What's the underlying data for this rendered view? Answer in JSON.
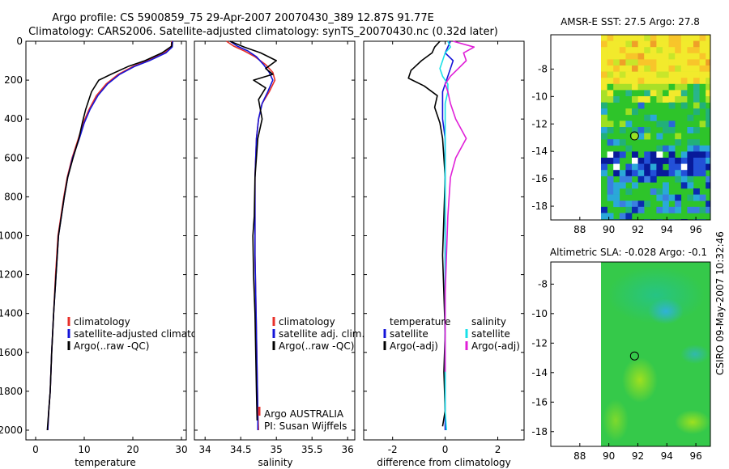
{
  "figure": {
    "title_line1": "Argo profile: CS 5900859_75 29-Apr-2007 20070430_389 12.87S 91.77E",
    "title_line2": "Climatology: CARS2006. Satellite-adjusted climatology: synTS_20070430.nc (0.32d later)",
    "credit": "CSIRO 09-May-2007 10:32:46"
  },
  "colors": {
    "climatology": "#e8302a",
    "satellite": "#1414d8",
    "argo": "#000000",
    "salinity_satellite": "#19e0e8",
    "salinity_argo": "#e020d8"
  },
  "chart_data": [
    {
      "id": "temperature-profile",
      "type": "line",
      "xlabel": "temperature",
      "ylabel": "",
      "xlim": [
        -2,
        31
      ],
      "ylim": [
        2050,
        0
      ],
      "xticks": [
        0,
        10,
        20,
        30
      ],
      "yticks": [
        0,
        200,
        400,
        600,
        800,
        1000,
        1200,
        1400,
        1600,
        1800,
        2000
      ],
      "legend": {
        "position": "middle-right",
        "entries": [
          "climatology",
          "satellite-adjusted climatology",
          "Argo(..raw -QC)"
        ]
      },
      "series": [
        {
          "name": "climatology",
          "color_key": "climatology",
          "x": [
            28.0,
            27.9,
            26.5,
            23.0,
            20.0,
            17.0,
            14.5,
            12.5,
            11.0,
            9.8,
            8.8,
            7.5,
            6.5,
            5.8,
            5.2,
            4.6,
            4.1,
            3.7,
            3.3,
            3.0,
            2.7,
            2.5
          ],
          "y": [
            0,
            30,
            60,
            100,
            130,
            170,
            220,
            280,
            350,
            420,
            500,
            600,
            700,
            800,
            900,
            1000,
            1200,
            1400,
            1600,
            1800,
            1900,
            2000
          ]
        },
        {
          "name": "satellite-adjusted climatology",
          "color_key": "satellite",
          "x": [
            28.2,
            28.1,
            26.8,
            23.4,
            20.3,
            17.3,
            14.8,
            12.8,
            11.2,
            10.0,
            9.0,
            7.6,
            6.6,
            5.9,
            5.3,
            4.7,
            4.2,
            3.7,
            3.3,
            3.0,
            2.7,
            2.5
          ],
          "y": [
            0,
            30,
            60,
            100,
            130,
            170,
            220,
            280,
            350,
            420,
            500,
            600,
            700,
            800,
            900,
            1000,
            1200,
            1400,
            1600,
            1800,
            1900,
            2000
          ]
        },
        {
          "name": "Argo(..raw -QC)",
          "color_key": "argo",
          "x": [
            28.0,
            28.0,
            26.0,
            22.5,
            19.0,
            15.5,
            13.0,
            11.5,
            10.3,
            9.6,
            8.9,
            7.7,
            6.6,
            5.9,
            5.3,
            4.7,
            4.2,
            3.7,
            3.3,
            3.0,
            2.7,
            2.4
          ],
          "y": [
            5,
            25,
            60,
            100,
            130,
            170,
            200,
            260,
            350,
            420,
            500,
            600,
            700,
            800,
            900,
            1000,
            1200,
            1400,
            1600,
            1800,
            1900,
            2000
          ]
        }
      ]
    },
    {
      "id": "salinity-profile",
      "type": "line",
      "xlabel": "salinity",
      "ylabel": "",
      "xlim": [
        33.85,
        36.1
      ],
      "ylim": [
        2050,
        0
      ],
      "xticks": [
        34,
        34.5,
        35,
        35.5,
        36
      ],
      "yticks": [
        0,
        200,
        400,
        600,
        800,
        1000,
        1200,
        1400,
        1600,
        1800,
        2000
      ],
      "legend": {
        "position": "middle-right",
        "entries": [
          "climatology",
          "satellite adj. clim.",
          "Argo(..raw -QC)"
        ]
      },
      "annotation": [
        "Argo AUSTRALIA",
        "PI: Susan Wijffels"
      ],
      "series": [
        {
          "name": "climatology",
          "color_key": "climatology",
          "x": [
            34.3,
            34.4,
            34.55,
            34.7,
            34.85,
            34.95,
            34.98,
            34.9,
            34.8,
            34.75,
            34.72,
            34.7,
            34.7,
            34.7,
            34.71,
            34.72,
            34.73,
            34.74,
            34.75
          ],
          "y": [
            0,
            25,
            50,
            80,
            120,
            160,
            200,
            260,
            320,
            400,
            500,
            700,
            900,
            1100,
            1300,
            1500,
            1700,
            1900,
            2000
          ]
        },
        {
          "name": "satellite adj. clim.",
          "color_key": "satellite",
          "x": [
            34.35,
            34.45,
            34.6,
            34.72,
            34.82,
            34.9,
            34.95,
            34.88,
            34.8,
            34.75,
            34.72,
            34.7,
            34.7,
            34.7,
            34.71,
            34.72,
            34.73,
            34.74,
            34.74
          ],
          "y": [
            0,
            25,
            50,
            80,
            120,
            160,
            200,
            260,
            320,
            400,
            500,
            700,
            900,
            1100,
            1300,
            1500,
            1700,
            1900,
            2000
          ]
        },
        {
          "name": "Argo(..raw -QC)",
          "color_key": "argo",
          "x": [
            34.35,
            34.55,
            34.78,
            35.0,
            34.85,
            34.95,
            34.68,
            34.85,
            34.75,
            34.8,
            34.74,
            34.7,
            34.69,
            34.67,
            34.68,
            34.7,
            34.71,
            34.72,
            34.73
          ],
          "y": [
            0,
            30,
            60,
            100,
            140,
            170,
            200,
            240,
            300,
            400,
            500,
            700,
            900,
            1000,
            1200,
            1400,
            1600,
            1800,
            1950
          ]
        }
      ]
    },
    {
      "id": "difference-profile",
      "type": "line",
      "xlabel": "difference from climatology",
      "ylabel": "",
      "xlim": [
        -3.1,
        3.0
      ],
      "ylim": [
        2050,
        0
      ],
      "xticks": [
        -2,
        0,
        2
      ],
      "yticks": [
        0,
        200,
        400,
        600,
        800,
        1000,
        1200,
        1400,
        1600,
        1800,
        2000
      ],
      "legend": {
        "position": "middle",
        "temperature_header": "temperature",
        "salinity_header": "salinity",
        "entries": [
          "satellite",
          "Argo(-adj)",
          "satellite",
          "Argo(-adj)"
        ]
      },
      "series": [
        {
          "name": "temperature satellite",
          "color_key": "satellite",
          "x": [
            0.2,
            0.1,
            0.0,
            0.3,
            0.2,
            0.1,
            0.0,
            -0.1,
            -0.1,
            -0.1,
            0.0,
            0.0,
            0.0,
            0.0,
            0.0,
            0.0,
            0.0,
            0.0,
            0.0
          ],
          "y": [
            0,
            30,
            60,
            100,
            140,
            180,
            220,
            260,
            320,
            400,
            500,
            700,
            900,
            1100,
            1300,
            1500,
            1700,
            1900,
            2000
          ]
        },
        {
          "name": "temperature Argo(-adj)",
          "color_key": "argo",
          "x": [
            -0.2,
            -0.4,
            -0.5,
            -0.9,
            -1.3,
            -1.4,
            -0.8,
            -0.3,
            -0.4,
            -0.2,
            -0.1,
            0.0,
            -0.05,
            -0.1,
            -0.05,
            0.0,
            -0.05,
            0.0,
            -0.1
          ],
          "y": [
            0,
            30,
            60,
            100,
            150,
            190,
            230,
            280,
            340,
            420,
            500,
            700,
            900,
            1100,
            1300,
            1500,
            1700,
            1900,
            1980
          ]
        },
        {
          "name": "salinity satellite",
          "color_key": "salinity_satellite",
          "x": [
            0.1,
            0.2,
            0.0,
            -0.1,
            -0.2,
            -0.1,
            0.1,
            0.1,
            0.0,
            0.0,
            0.0,
            0.0,
            0.0,
            0.0,
            0.0,
            0.0,
            0.0,
            0.0,
            0.05
          ],
          "y": [
            0,
            30,
            60,
            100,
            140,
            180,
            220,
            260,
            320,
            400,
            500,
            700,
            900,
            1100,
            1300,
            1500,
            1700,
            1900,
            2000
          ]
        },
        {
          "name": "salinity Argo(-adj)",
          "color_key": "salinity_argo",
          "x": [
            0.3,
            1.1,
            0.7,
            0.8,
            0.5,
            0.2,
            0.0,
            0.1,
            0.2,
            0.4,
            0.6,
            0.8,
            0.4,
            0.2,
            0.1,
            0.05,
            0.0,
            0.0,
            0.0
          ],
          "y": [
            0,
            30,
            60,
            100,
            140,
            180,
            220,
            260,
            320,
            400,
            450,
            500,
            600,
            700,
            900,
            1100,
            1300,
            1500,
            1700
          ]
        }
      ]
    },
    {
      "id": "sst-map",
      "type": "heatmap",
      "title": "AMSR-E SST: 27.5 Argo: 27.8",
      "xlim": [
        86,
        97
      ],
      "ylim": [
        -19,
        -5.5
      ],
      "xticks": [
        88,
        90,
        92,
        94,
        96
      ],
      "yticks": [
        -8,
        -10,
        -12,
        -14,
        -16,
        -18
      ],
      "data_start_lon": 90,
      "float_position": {
        "lon": 91.77,
        "lat": -12.87
      }
    },
    {
      "id": "sla-map",
      "type": "heatmap",
      "title": "Altimetric SLA: -0.028 Argo: -0.1",
      "xlim": [
        86,
        97
      ],
      "ylim": [
        -19,
        -6.5
      ],
      "xticks": [
        88,
        90,
        92,
        94,
        96
      ],
      "yticks": [
        -8,
        -10,
        -12,
        -14,
        -16,
        -18
      ],
      "data_start_lon": 90,
      "float_position": {
        "lon": 91.77,
        "lat": -12.87
      }
    }
  ]
}
